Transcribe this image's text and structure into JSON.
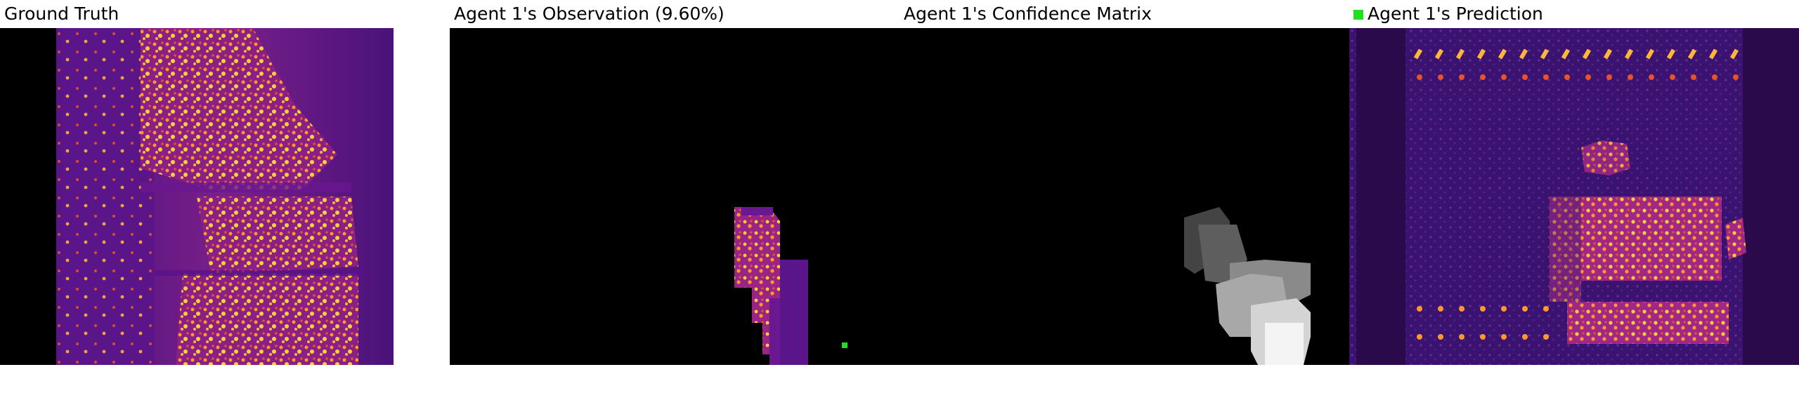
{
  "panels": [
    {
      "title": "Ground Truth"
    },
    {
      "title": "Agent 1's Observation (9.60%)"
    },
    {
      "title": "Agent 1's Confidence Matrix"
    },
    {
      "title": "Agent 1's Prediction",
      "legend_color": "#22dd22"
    }
  ],
  "colors": {
    "background": "#000000",
    "heat_low": "#2a0a6e",
    "heat_mid": "#b22c8a",
    "heat_high": "#ffd23a",
    "agent_marker": "#22dd22"
  }
}
